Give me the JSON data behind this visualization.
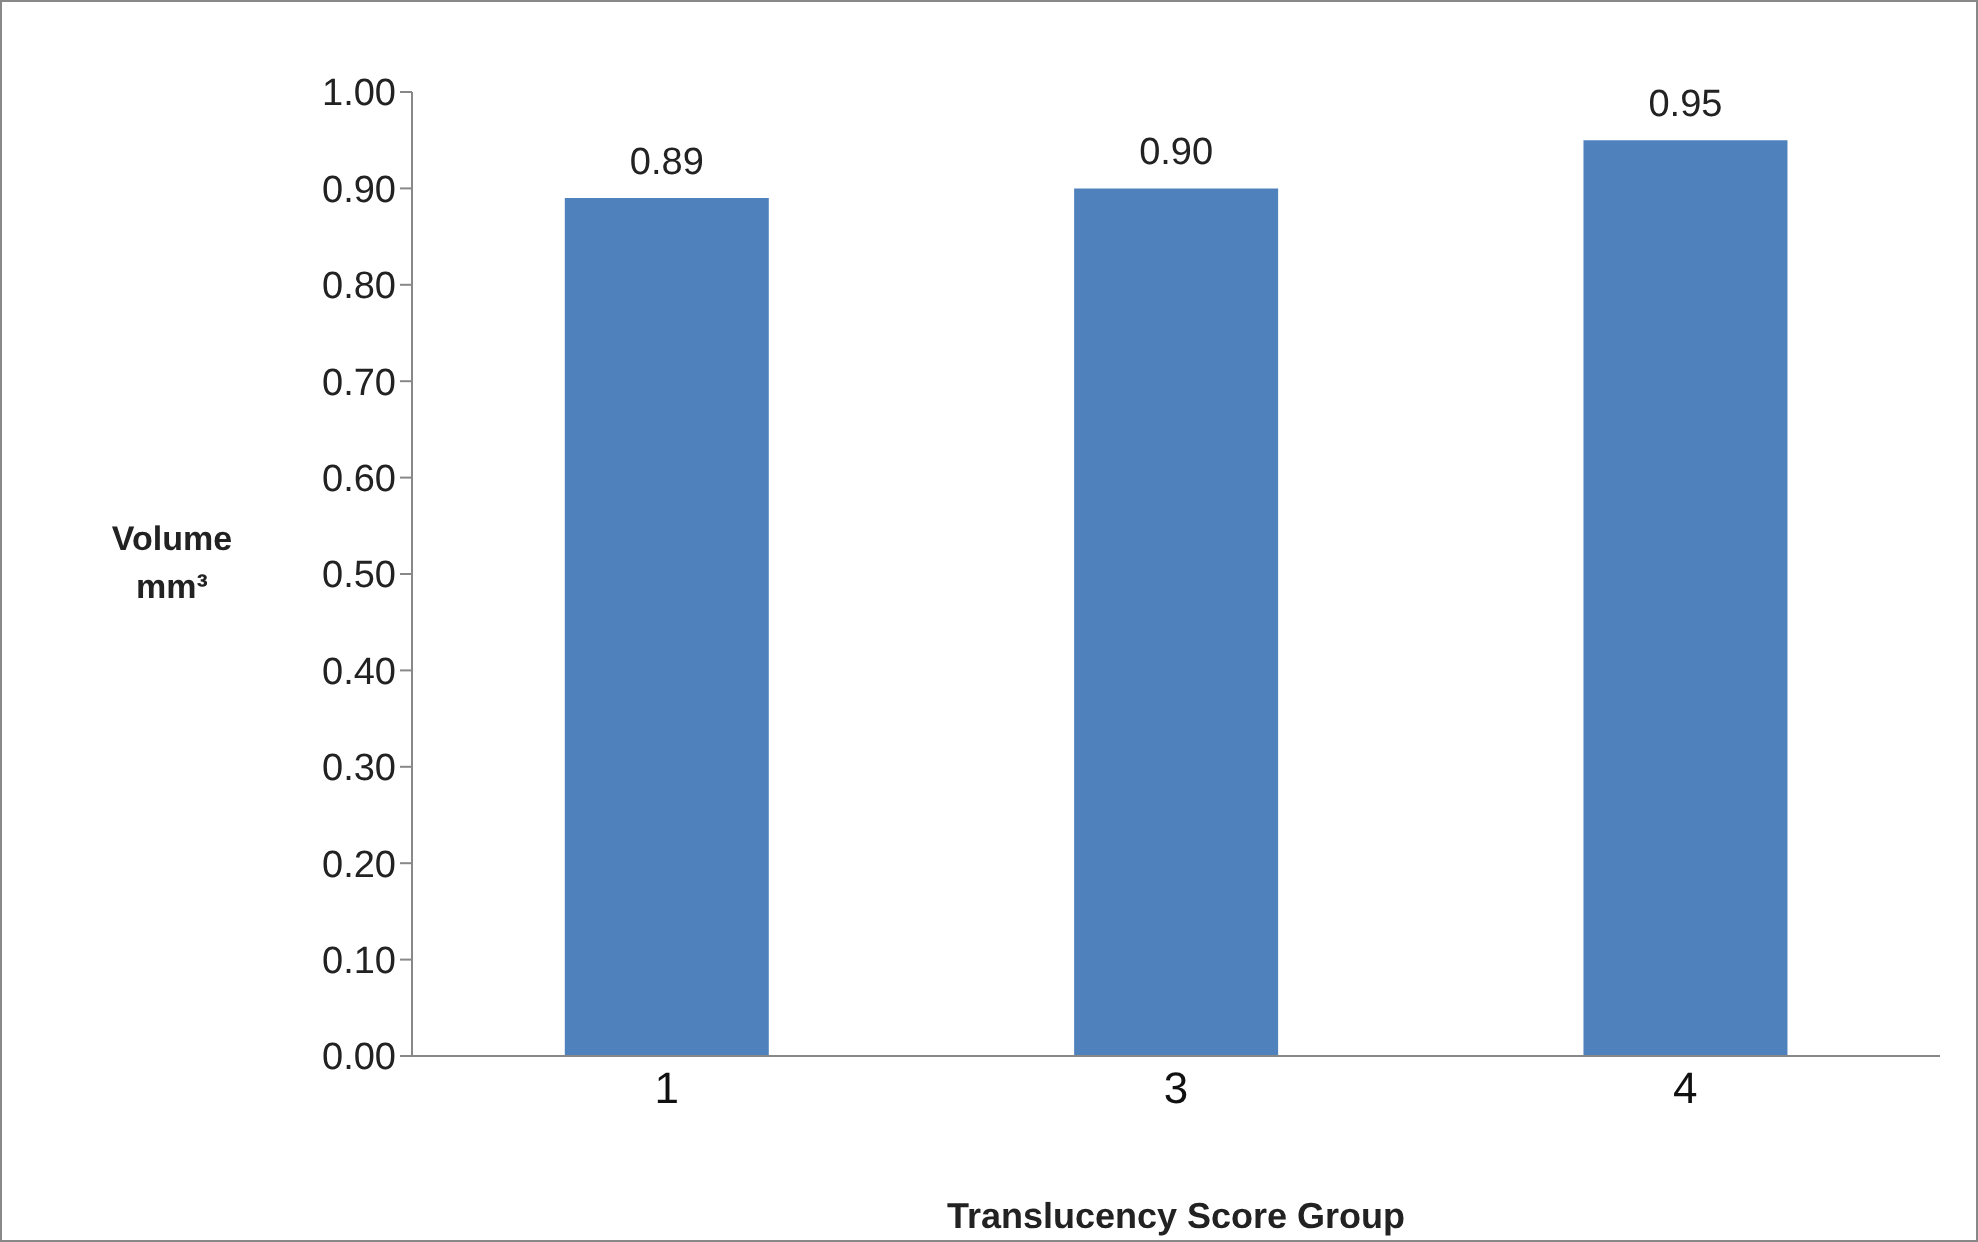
{
  "chart_data": {
    "type": "bar",
    "xlabel": "Translucency Score Group",
    "ylabel": "Volume mm³",
    "categories": [
      "1",
      "3",
      "4"
    ],
    "values": [
      0.89,
      0.9,
      0.95
    ],
    "value_labels": [
      "0.89",
      "0.90",
      "0.95"
    ],
    "color": "#4f81bd",
    "ylim": [
      0,
      1
    ],
    "yticks": [
      {
        "value": 0,
        "label": "0.00"
      },
      {
        "value": 0.1,
        "label": "0.10"
      },
      {
        "value": 0.2,
        "label": "0.20"
      },
      {
        "value": 0.3,
        "label": "0.30"
      },
      {
        "value": 0.4,
        "label": "0.40"
      },
      {
        "value": 0.5,
        "label": "0.50"
      },
      {
        "value": 0.6,
        "label": "0.60"
      },
      {
        "value": 0.7,
        "label": "0.70"
      },
      {
        "value": 0.8,
        "label": "0.80"
      },
      {
        "value": 0.9,
        "label": "0.90"
      },
      {
        "value": 1,
        "label": "1.00"
      }
    ],
    "grid": false,
    "legend": false
  }
}
